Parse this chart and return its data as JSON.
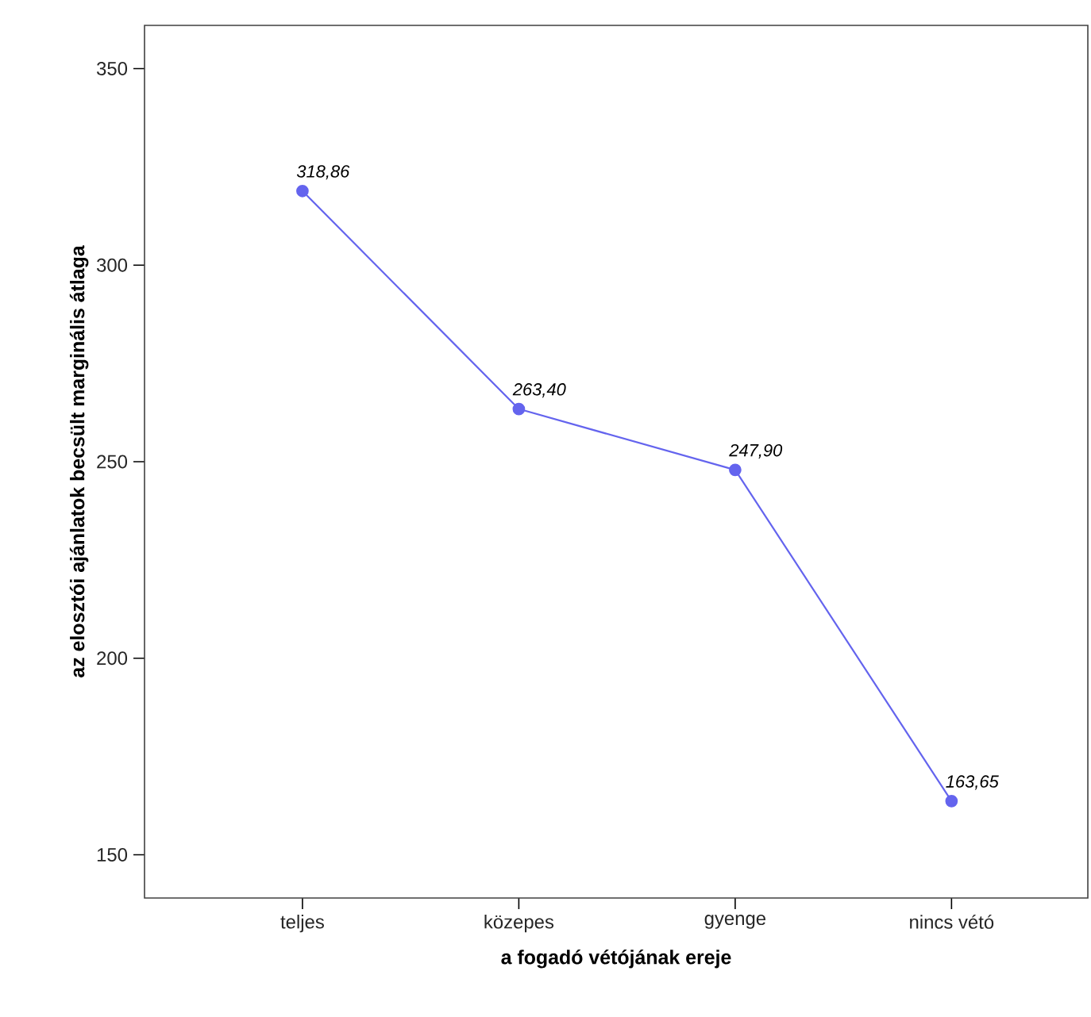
{
  "chart_data": {
    "type": "line",
    "xlabel": "a fogadó vétójának ereje",
    "ylabel": "az elosztói ajánlatok becsült marginális átlaga",
    "categories": [
      "teljes",
      "közepes",
      "gyenge",
      "nincs vétó"
    ],
    "values": [
      318.86,
      263.4,
      247.9,
      163.65
    ],
    "value_labels": [
      "318,86",
      "263,40",
      "247,90",
      "163,65"
    ],
    "color": "#6464ee",
    "marker": "circle",
    "line_style": "solid",
    "grid": false,
    "ylim": [
      139,
      361
    ],
    "yticks": [
      150,
      200,
      250,
      300,
      350
    ]
  }
}
